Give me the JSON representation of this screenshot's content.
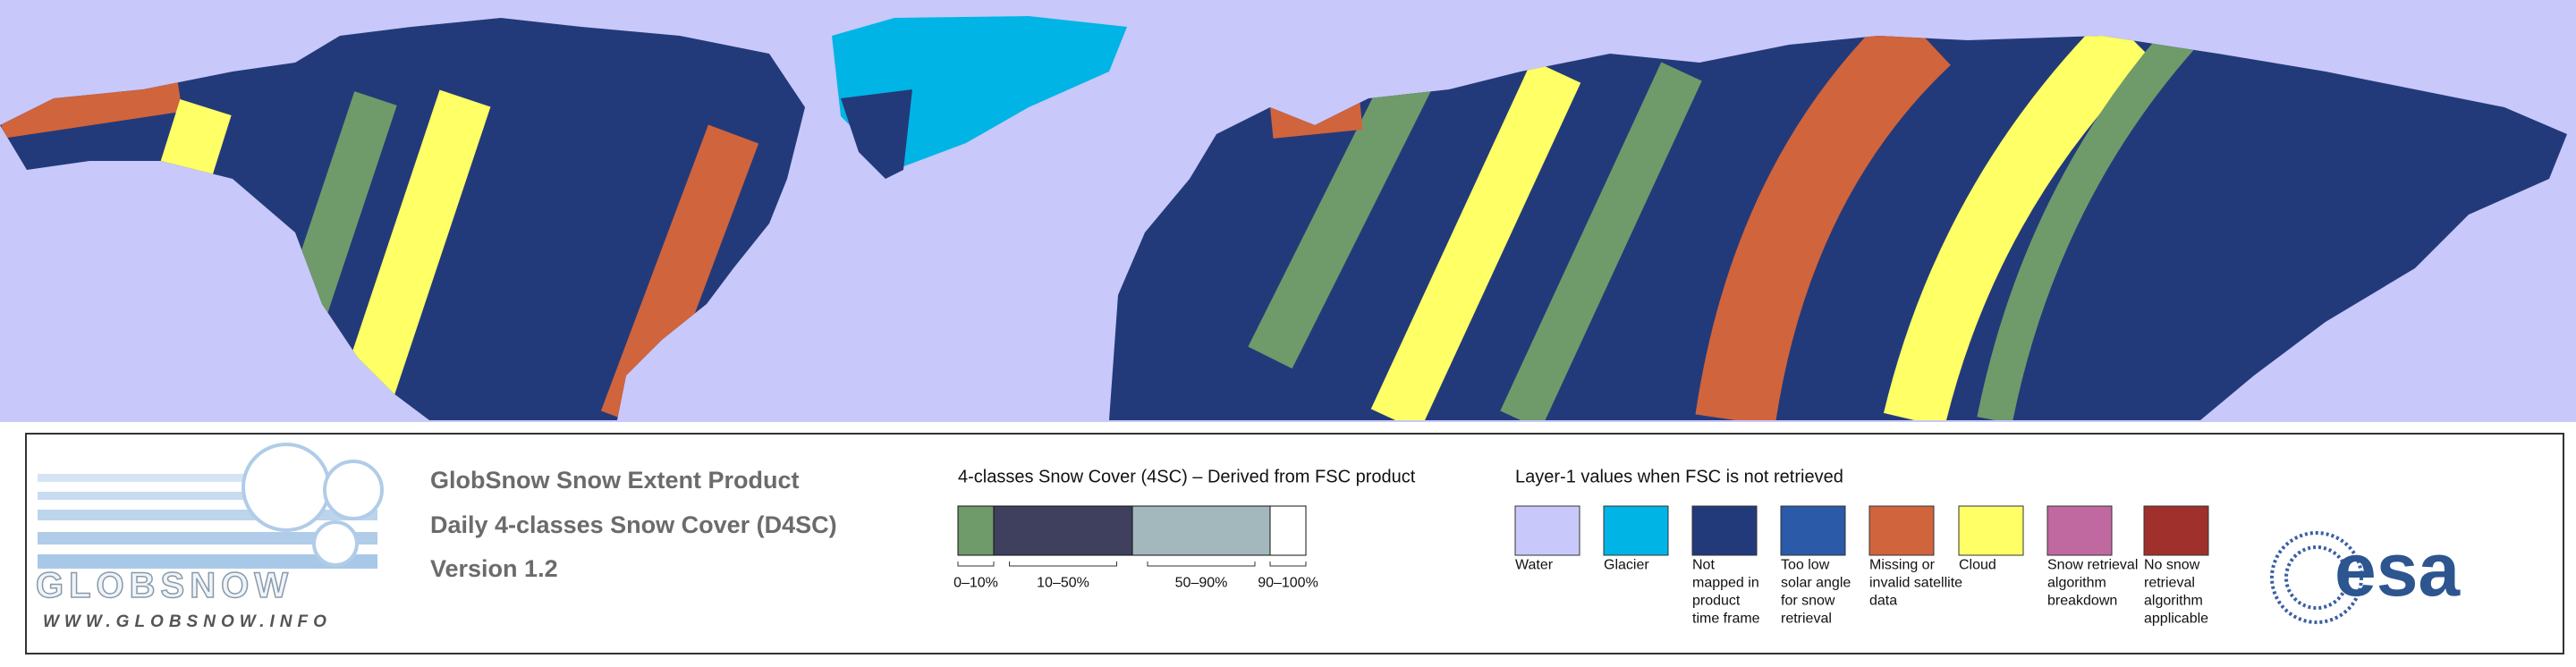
{
  "product": {
    "title": "GlobSnow Snow Extent Product",
    "subtitle": "Daily 4-classes Snow Cover (D4SC)",
    "version": "Version 1.2"
  },
  "logo": {
    "name": "GLOBSNOW",
    "url": "WWW.GLOBSNOW.INFO",
    "agency": "esa"
  },
  "snow_cover_legend": {
    "title": "4-classes Snow Cover (4SC) – Derived from FSC product",
    "classes": [
      {
        "label": "0–10%",
        "color": "#6f9a6a"
      },
      {
        "label": "10–50%",
        "color": "#3f3f5e"
      },
      {
        "label": "50–90%",
        "color": "#a2b8bd"
      },
      {
        "label": "90–100%",
        "color": "#ffffff"
      }
    ]
  },
  "layer1_legend": {
    "title": "Layer-1 values when FSC is not retrieved",
    "items": [
      {
        "lines": [
          "Water"
        ],
        "color": "#c8c8fa"
      },
      {
        "lines": [
          "Glacier"
        ],
        "color": "#00b4e6"
      },
      {
        "lines": [
          "Not",
          "mapped in",
          "product",
          "time frame"
        ],
        "color": "#233a7a"
      },
      {
        "lines": [
          "Too low",
          "solar angle",
          "for snow",
          "retrieval"
        ],
        "color": "#2a5aa8"
      },
      {
        "lines": [
          "Missing or",
          "invalid satellite",
          "data"
        ],
        "color": "#d0643c"
      },
      {
        "lines": [
          "Cloud"
        ],
        "color": "#ffff66"
      },
      {
        "lines": [
          "Snow retrieval",
          "algorithm",
          "breakdown"
        ],
        "color": "#c068a0"
      },
      {
        "lines": [
          "No snow",
          "retrieval",
          "algorithm",
          "applicable"
        ],
        "color": "#a0302c"
      }
    ]
  }
}
